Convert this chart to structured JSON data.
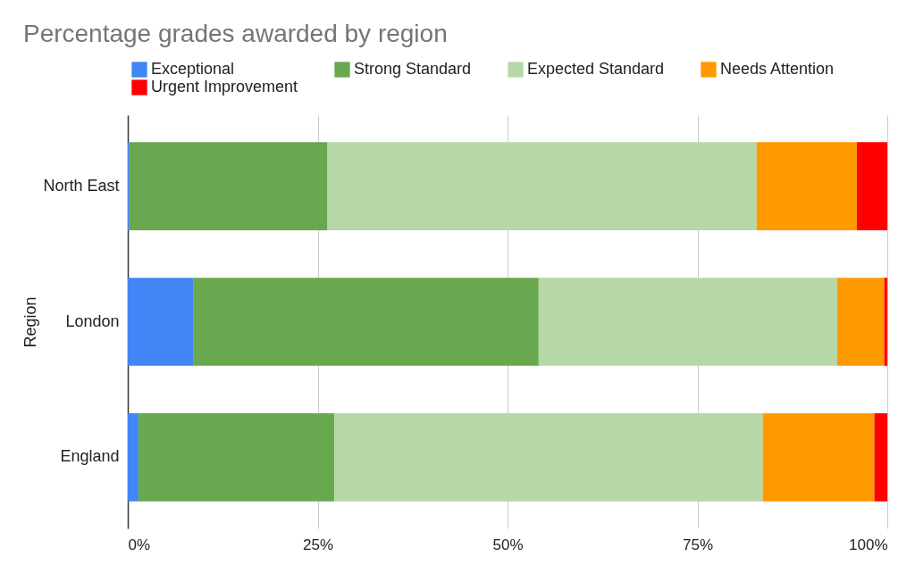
{
  "chart_data": {
    "type": "bar",
    "orientation": "horizontal",
    "stacked": true,
    "title": "Percentage grades awarded by region",
    "ylabel": "Region",
    "categories": [
      "North East",
      "London",
      "England"
    ],
    "series": [
      {
        "name": "Exceptional",
        "color": "#4285f4",
        "values": [
          0.2,
          8.6,
          1.4
        ]
      },
      {
        "name": "Strong Standard",
        "color": "#6aa84f",
        "values": [
          26.1,
          45.5,
          25.8
        ]
      },
      {
        "name": "Expected Standard",
        "color": "#b6d7a8",
        "values": [
          56.5,
          39.3,
          56.4
        ]
      },
      {
        "name": "Needs Attention",
        "color": "#ff9900",
        "values": [
          13.2,
          6.2,
          14.7
        ]
      },
      {
        "name": "Urgent Improvement",
        "color": "#ff0000",
        "values": [
          4.0,
          0.4,
          1.7
        ]
      }
    ],
    "xlim": [
      0,
      100
    ],
    "xticks": [
      {
        "value": 0,
        "label": "0%"
      },
      {
        "value": 25,
        "label": "25%"
      },
      {
        "value": 50,
        "label": "50%"
      },
      {
        "value": 75,
        "label": "75%"
      },
      {
        "value": 100,
        "label": "100%"
      }
    ],
    "grid": "x",
    "legend": "top"
  }
}
